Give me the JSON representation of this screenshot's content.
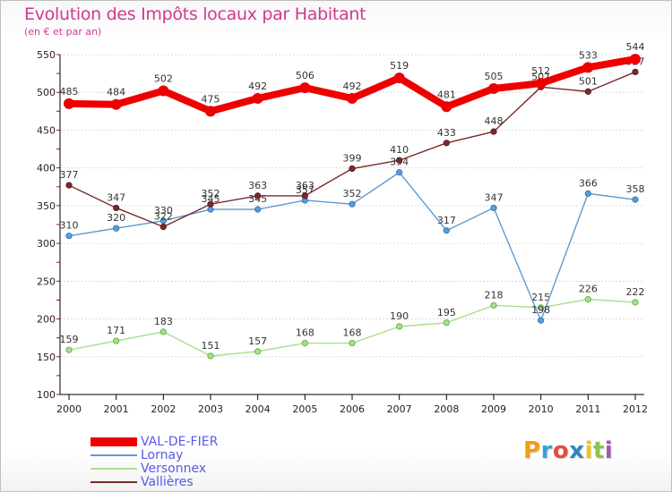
{
  "title": "Evolution des Impôts locaux par Habitant",
  "subtitle": "(en € et par an)",
  "logo": {
    "text": "Proxiti",
    "colors": [
      "#f39c12",
      "#3aa0d8",
      "#e74c3c",
      "#2e86c1",
      "#f1c40f",
      "#8bc34a",
      "#9b59b6"
    ]
  },
  "chart_data": {
    "type": "line",
    "x": [
      "2000",
      "2001",
      "2002",
      "2003",
      "2004",
      "2005",
      "2006",
      "2007",
      "2008",
      "2009",
      "2010",
      "2011",
      "2012"
    ],
    "ylim": [
      100,
      550
    ],
    "yticks": [
      100,
      150,
      200,
      250,
      300,
      350,
      400,
      450,
      500,
      550
    ],
    "grid": "horizontal",
    "legend_position": "bottom-left",
    "series": [
      {
        "name": "VAL-DE-FIER",
        "color": "#ee0000",
        "values": [
          485,
          484,
          502,
          475,
          492,
          506,
          492,
          519,
          481,
          505,
          512,
          533,
          544
        ]
      },
      {
        "name": "Lornay",
        "color": "#5b9bd5",
        "values": [
          310,
          320,
          330,
          345,
          345,
          357,
          352,
          394,
          317,
          347,
          198,
          366,
          358
        ]
      },
      {
        "name": "Versonnex",
        "color": "#a6e08a",
        "values": [
          159,
          171,
          183,
          151,
          157,
          168,
          168,
          190,
          195,
          218,
          215,
          226,
          222
        ]
      },
      {
        "name": "Vallières",
        "color": "#7a2a2a",
        "values": [
          377,
          347,
          322,
          352,
          363,
          363,
          399,
          410,
          433,
          448,
          507,
          501,
          527
        ]
      }
    ],
    "data_labels": [
      [
        "485",
        "484",
        "502",
        "475",
        "492",
        "506",
        "492",
        "519",
        "481",
        "505",
        "512",
        "533",
        "544"
      ],
      [
        "310",
        "320",
        "330",
        "345",
        "345",
        "357",
        "352",
        "394",
        "317",
        "347",
        "198",
        "366",
        "358"
      ],
      [
        "159",
        "171",
        "183",
        "151",
        "157",
        "168",
        "168",
        "190",
        "195",
        "218",
        "215",
        "226",
        "222"
      ],
      [
        "377",
        "347",
        "322",
        "352",
        "363",
        "363",
        "399",
        "410",
        "433",
        "448",
        "507",
        "501",
        "527"
      ]
    ]
  }
}
